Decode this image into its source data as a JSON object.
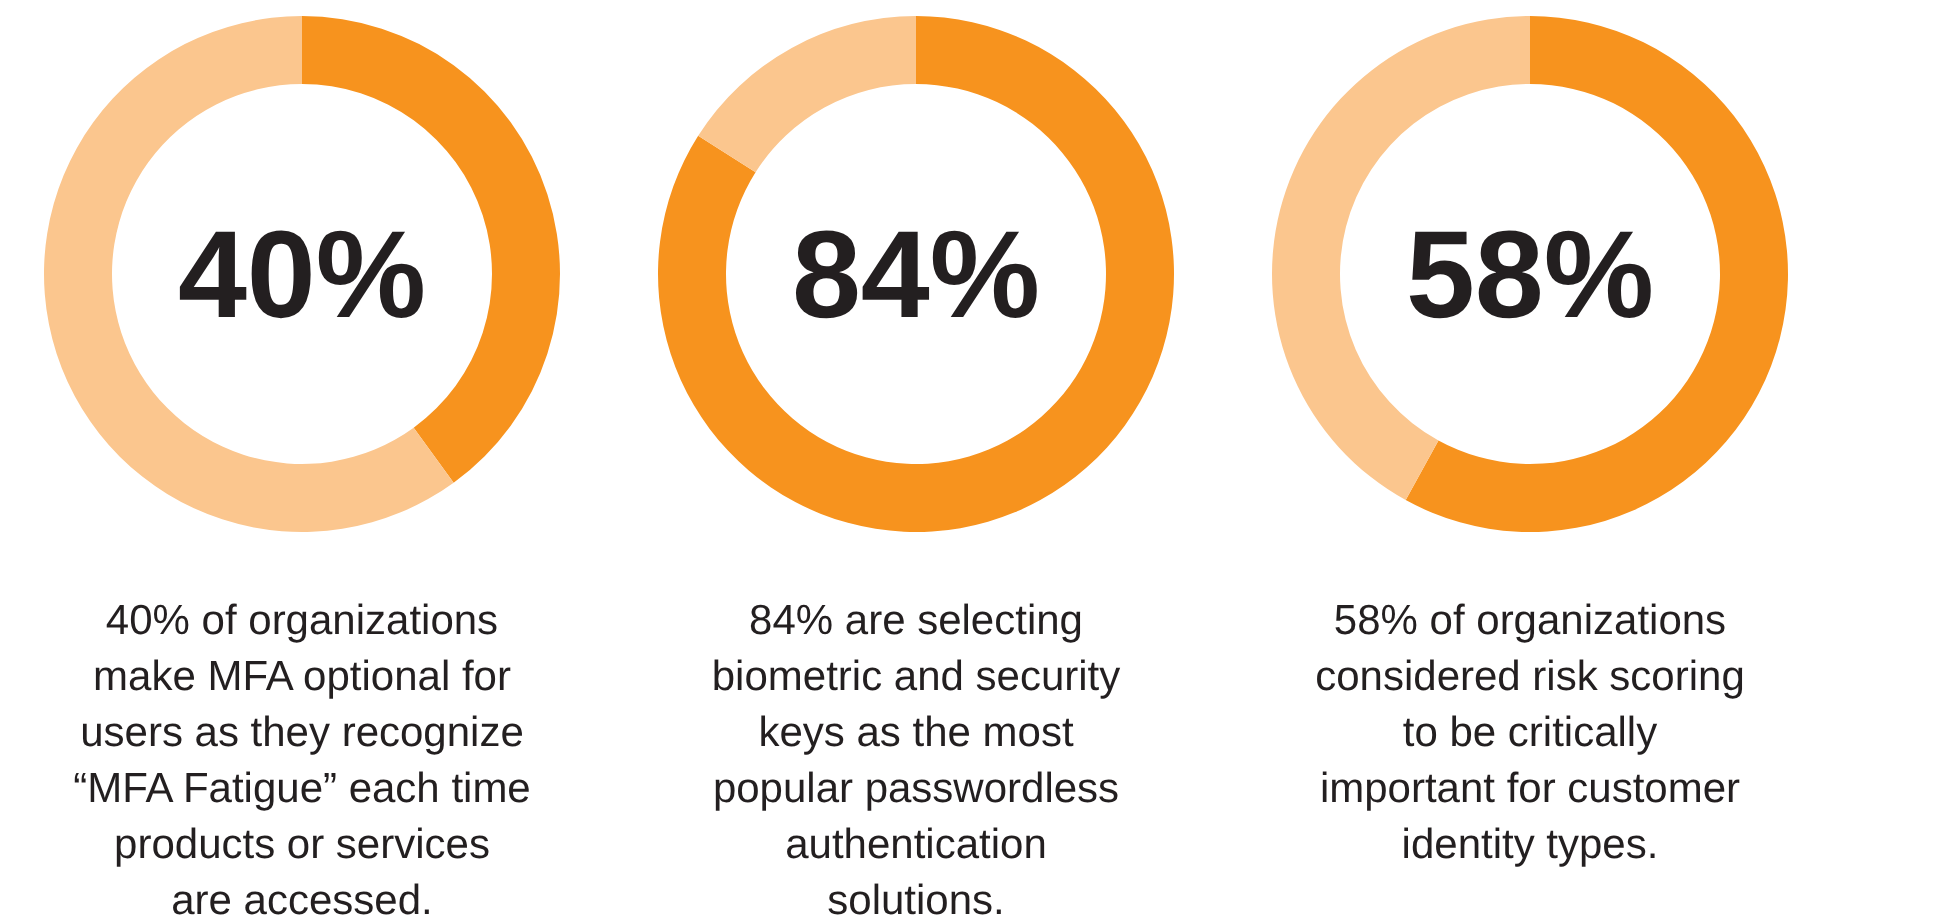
{
  "chart_data": [
    {
      "type": "donut",
      "categories": [
        null,
        null
      ],
      "values": [
        40,
        60
      ],
      "colors": [
        "#f7931e",
        "#fbc68e"
      ],
      "annotations": [
        "40%",
        "40% of organizations make MFA optional for users as they recognize “MFA Fatigue” each time products or services are accessed."
      ]
    },
    {
      "type": "donut",
      "categories": [
        null,
        null
      ],
      "values": [
        84,
        16
      ],
      "colors": [
        "#f7931e",
        "#fbc68e"
      ],
      "annotations": [
        "84%",
        "84% are selecting biometric and security keys as the most popular passwordless authentication solutions."
      ]
    },
    {
      "type": "donut",
      "categories": [
        null,
        null
      ],
      "values": [
        58,
        42
      ],
      "colors": [
        "#f7931e",
        "#fbc68e"
      ],
      "annotations": [
        "58%",
        "58% of organizations considered risk scoring to be critically important for customer identity types."
      ]
    }
  ]
}
